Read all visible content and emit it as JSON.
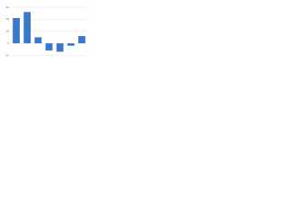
{
  "chart_data": {
    "type": "bar",
    "categories": [
      null,
      null,
      null,
      null,
      null,
      null,
      null
    ],
    "values": [
      21,
      26,
      5,
      -6,
      -7,
      -2,
      6
    ],
    "color": "#3a78c9",
    "ylim": [
      -10,
      30
    ],
    "yticks": [
      -10,
      0,
      10,
      20,
      30
    ],
    "grid": true
  }
}
